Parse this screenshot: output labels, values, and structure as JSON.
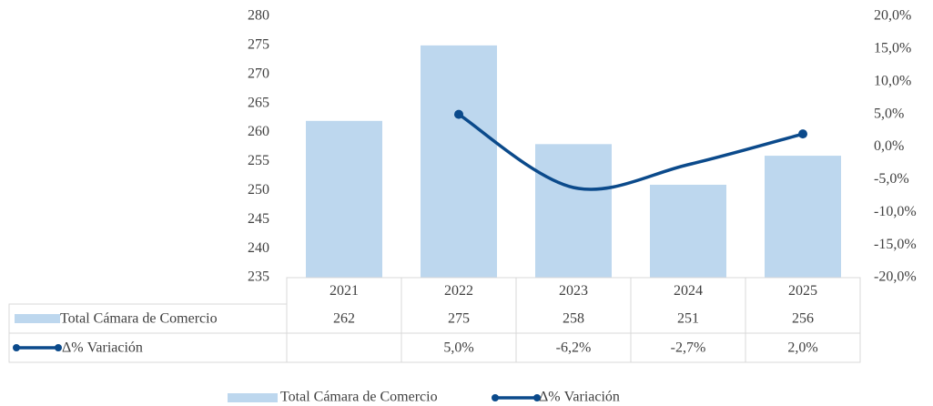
{
  "chart_data": {
    "type": "bar",
    "categories": [
      "2021",
      "2022",
      "2023",
      "2024",
      "2025"
    ],
    "series": [
      {
        "name": "Total Cámara de Comercio",
        "color": "#bdd7ee",
        "values": [
          262,
          275,
          258,
          251,
          256
        ]
      },
      {
        "name": "Δ% Variación",
        "type": "line",
        "axis": "y2",
        "color": "#0b4a8b",
        "values": [
          null,
          5.0,
          -6.2,
          -2.7,
          2.0
        ],
        "value_labels": [
          null,
          "5,0%",
          "-6,2%",
          "-2,7%",
          "2,0%"
        ]
      }
    ],
    "ylim": [
      235,
      280
    ],
    "yticks": [
      235,
      240,
      245,
      250,
      255,
      260,
      265,
      270,
      275,
      280
    ],
    "y2lim": [
      -20,
      20
    ],
    "y2ticks": [
      {
        "value": -20,
        "label": "-20,0%"
      },
      {
        "value": -15,
        "label": "-15,0%"
      },
      {
        "value": -10,
        "label": "-10,0%"
      },
      {
        "value": -5,
        "label": "-5,0%"
      },
      {
        "value": 0,
        "label": "0,0%"
      },
      {
        "value": 5,
        "label": "5,0%"
      },
      {
        "value": 10,
        "label": "10,0%"
      },
      {
        "value": 15,
        "label": "15,0%"
      },
      {
        "value": 20,
        "label": "20,0%"
      }
    ],
    "grid": false,
    "legend": "bottom",
    "data_table": true
  }
}
